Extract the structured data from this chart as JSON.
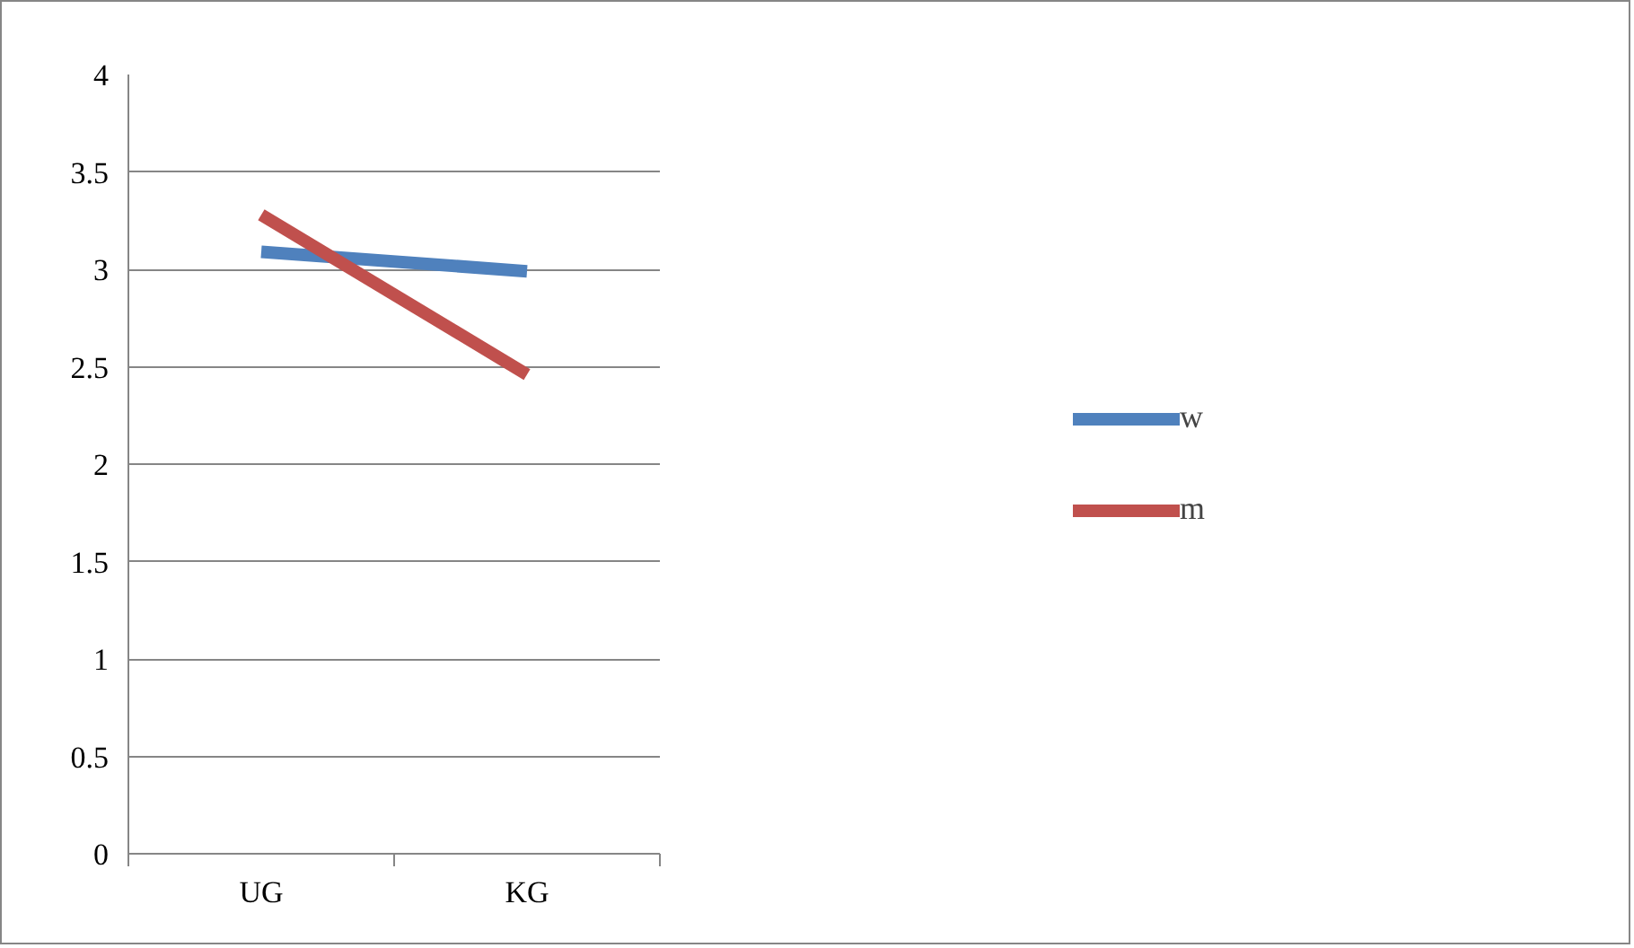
{
  "chart_data": {
    "type": "line",
    "categories": [
      "UG",
      "KG"
    ],
    "series": [
      {
        "name": "w",
        "color": "#4f81bd",
        "values": [
          3.09,
          2.99
        ]
      },
      {
        "name": "m",
        "color": "#c0504d",
        "values": [
          3.28,
          2.46
        ]
      }
    ],
    "ylim": [
      0,
      4
    ],
    "yticks": [
      0,
      0.5,
      1,
      1.5,
      2,
      2.5,
      3,
      3.5,
      4
    ],
    "grid": "y",
    "legend": "right",
    "marker": "none",
    "line_style": "solid"
  }
}
